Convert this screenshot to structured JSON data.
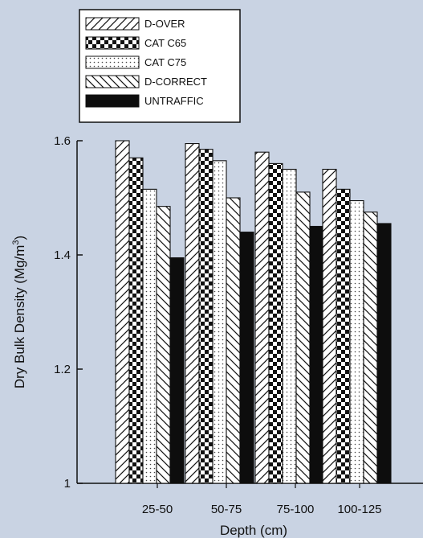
{
  "chart_data": {
    "type": "bar",
    "title": "",
    "xlabel": "Depth (cm)",
    "ylabel": "Dry Bulk Density (Mg/m³)",
    "ylabel_main": "Dry Bulk Density (Mg/m",
    "ylabel_sup": "3",
    "ylabel_close": ")",
    "ylim": [
      1.0,
      1.6
    ],
    "yticks": [
      "1",
      "1.2",
      "1.4",
      "1.6"
    ],
    "ytick_values": [
      1.0,
      1.2,
      1.4,
      1.6
    ],
    "categories": [
      "25-50",
      "50-75",
      "75-100",
      "100-125"
    ],
    "legend_position": "top-left",
    "series": [
      {
        "name": "D-OVER",
        "pattern": "diagonal-hatch",
        "values": [
          1.6,
          1.595,
          1.58,
          1.55
        ]
      },
      {
        "name": "CAT C65",
        "pattern": "checkerboard",
        "values": [
          1.57,
          1.585,
          1.56,
          1.515
        ]
      },
      {
        "name": "CAT C75",
        "pattern": "dotted",
        "values": [
          1.515,
          1.565,
          1.55,
          1.495
        ]
      },
      {
        "name": "D-CORRECT",
        "pattern": "reverse-hatch",
        "values": [
          1.485,
          1.5,
          1.51,
          1.475
        ]
      },
      {
        "name": "UNTRAFFIC",
        "pattern": "solid-black",
        "values": [
          1.395,
          1.44,
          1.45,
          1.455
        ]
      }
    ],
    "colors": {
      "bar_stroke": "#111111",
      "solid": "#0d0d0d",
      "background": "#c9d3e3",
      "legend_bg": "#ffffff"
    }
  }
}
